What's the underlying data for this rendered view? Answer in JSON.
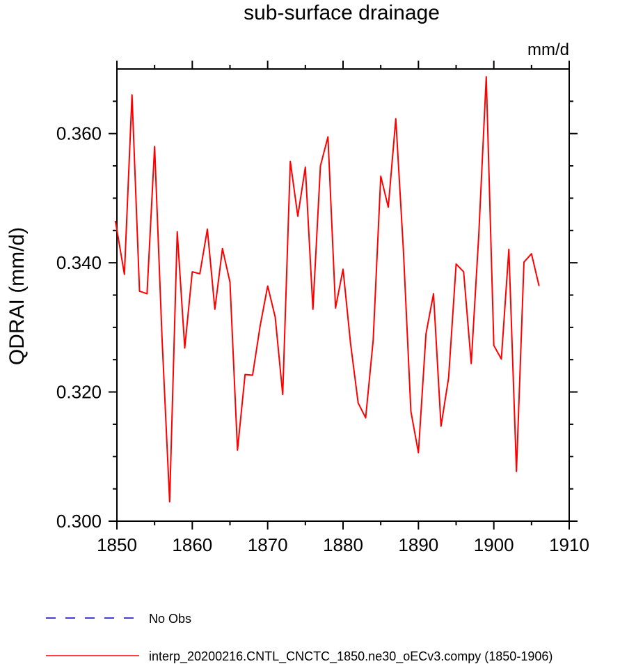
{
  "chart_data": {
    "type": "line",
    "title": "sub-surface drainage",
    "units": "mm/d",
    "ylabel": "QDRAI  (mm/d)",
    "xlabel": "",
    "xlim": [
      1850,
      1910
    ],
    "ylim": [
      0.3,
      0.37
    ],
    "xticks": [
      "1850",
      "1860",
      "1870",
      "1880",
      "1890",
      "1900",
      "1910"
    ],
    "yticks": [
      "0.300",
      "0.320",
      "0.340",
      "0.360"
    ],
    "x": [
      1849.8,
      1851,
      1852,
      1853,
      1854,
      1855,
      1856,
      1857,
      1858,
      1859,
      1860,
      1861,
      1862,
      1863,
      1864,
      1865,
      1866,
      1867,
      1868,
      1869,
      1870,
      1871,
      1872,
      1873,
      1874,
      1875,
      1876,
      1877,
      1878,
      1879,
      1880,
      1881,
      1882,
      1883,
      1884,
      1885,
      1886,
      1887,
      1888,
      1889,
      1890,
      1891,
      1892,
      1893,
      1894,
      1895,
      1896,
      1897,
      1898,
      1899,
      1900,
      1901,
      1902,
      1903,
      1904,
      1905,
      1906
    ],
    "series": [
      {
        "name": "interp_20200216.CNTL_CNCTC_1850.ne30_oECv3.compy (1850-1906)",
        "color": "#ff0000",
        "style": "solid",
        "values": [
          0.3465,
          0.3382,
          0.366,
          0.3356,
          0.3352,
          0.358,
          0.328,
          0.303,
          0.3448,
          0.3268,
          0.3386,
          0.3383,
          0.3452,
          0.3328,
          0.3422,
          0.337,
          0.311,
          0.3227,
          0.3226,
          0.3302,
          0.3364,
          0.3316,
          0.3196,
          0.3557,
          0.3472,
          0.3548,
          0.3328,
          0.355,
          0.3595,
          0.333,
          0.339,
          0.3275,
          0.3183,
          0.316,
          0.328,
          0.3534,
          0.3486,
          0.3623,
          0.342,
          0.317,
          0.3106,
          0.329,
          0.3352,
          0.3147,
          0.3222,
          0.3398,
          0.3386,
          0.3244,
          0.3442,
          0.3688,
          0.3272,
          0.3251,
          0.3421,
          0.3077,
          0.3401,
          0.3414,
          0.3364
        ]
      }
    ],
    "legend": {
      "placement": "bottom-left",
      "entries": [
        {
          "label": "No Obs",
          "color": "#0000cc",
          "style": "dashed"
        },
        {
          "label": "interp_20200216.CNTL_CNCTC_1850.ne30_oECv3.compy (1850-1906)",
          "color": "#ff0000",
          "style": "solid"
        }
      ]
    },
    "grid": false
  }
}
